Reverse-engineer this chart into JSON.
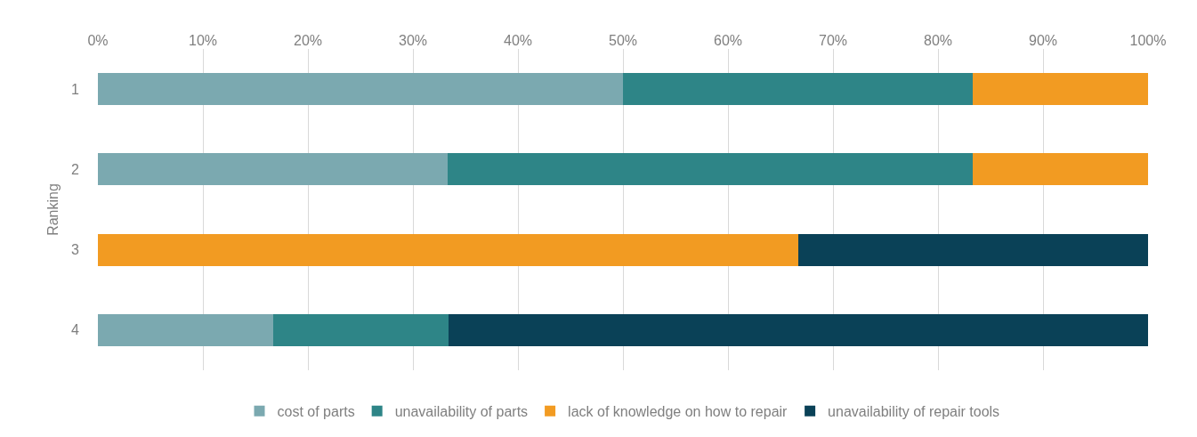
{
  "chart_data": {
    "type": "bar",
    "orientation": "horizontal",
    "stacked": true,
    "ylabel": "Ranking",
    "categories": [
      "1",
      "2",
      "3",
      "4"
    ],
    "series": [
      {
        "name": "cost of parts",
        "color": "#7ba9b0",
        "values": [
          50,
          33.3,
          0,
          16.7
        ]
      },
      {
        "name": "unavailability of parts",
        "color": "#2e8587",
        "values": [
          33.3,
          50,
          0,
          16.7
        ]
      },
      {
        "name": "lack of knowledge on how to repair",
        "color": "#f29b22",
        "values": [
          16.7,
          16.7,
          66.7,
          0
        ]
      },
      {
        "name": "unavailability of repair tools",
        "color": "#0a4157",
        "values": [
          0,
          0,
          33.3,
          66.7
        ]
      }
    ],
    "xlim": [
      0,
      100
    ],
    "xticks": [
      {
        "value": 0,
        "label": "0%"
      },
      {
        "value": 10,
        "label": "10%"
      },
      {
        "value": 20,
        "label": "20%"
      },
      {
        "value": 30,
        "label": "30%"
      },
      {
        "value": 40,
        "label": "40%"
      },
      {
        "value": 50,
        "label": "50%"
      },
      {
        "value": 60,
        "label": "60%"
      },
      {
        "value": 70,
        "label": "70%"
      },
      {
        "value": 80,
        "label": "80%"
      },
      {
        "value": 90,
        "label": "90%"
      },
      {
        "value": 100,
        "label": "100%"
      }
    ],
    "grid": "x",
    "legend": "bottom"
  }
}
